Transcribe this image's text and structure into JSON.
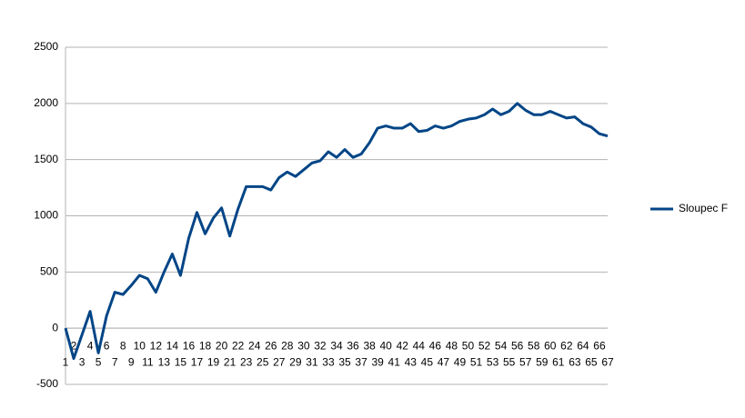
{
  "chart_data": {
    "type": "line",
    "categories": [
      "1",
      "2",
      "3",
      "4",
      "5",
      "6",
      "7",
      "8",
      "9",
      "10",
      "11",
      "12",
      "13",
      "14",
      "15",
      "16",
      "17",
      "18",
      "19",
      "20",
      "21",
      "22",
      "23",
      "24",
      "25",
      "26",
      "27",
      "28",
      "29",
      "30",
      "31",
      "32",
      "33",
      "34",
      "35",
      "36",
      "37",
      "38",
      "39",
      "40",
      "41",
      "42",
      "43",
      "44",
      "45",
      "46",
      "47",
      "48",
      "49",
      "50",
      "51",
      "52",
      "53",
      "54",
      "55",
      "56",
      "57",
      "58",
      "59",
      "60",
      "61",
      "62",
      "63",
      "64",
      "65",
      "66",
      "67"
    ],
    "series": [
      {
        "name": "Sloupec F",
        "color": "#004586",
        "values": [
          0,
          -270,
          -60,
          150,
          -220,
          110,
          320,
          300,
          380,
          470,
          440,
          320,
          500,
          660,
          470,
          800,
          1030,
          840,
          980,
          1070,
          820,
          1060,
          1260,
          1260,
          1260,
          1230,
          1340,
          1390,
          1350,
          1410,
          1470,
          1490,
          1570,
          1520,
          1590,
          1520,
          1550,
          1650,
          1780,
          1800,
          1780,
          1780,
          1820,
          1750,
          1760,
          1800,
          1780,
          1800,
          1840,
          1860,
          1870,
          1900,
          1950,
          1900,
          1930,
          2000,
          1940,
          1900,
          1900,
          1930,
          1900,
          1870,
          1880,
          1820,
          1790,
          1730,
          1710
        ]
      }
    ],
    "ylim": [
      -500,
      2500
    ],
    "yticks": [
      -500,
      0,
      500,
      1000,
      1500,
      2000,
      2500
    ],
    "grid": true,
    "legend": "right"
  }
}
